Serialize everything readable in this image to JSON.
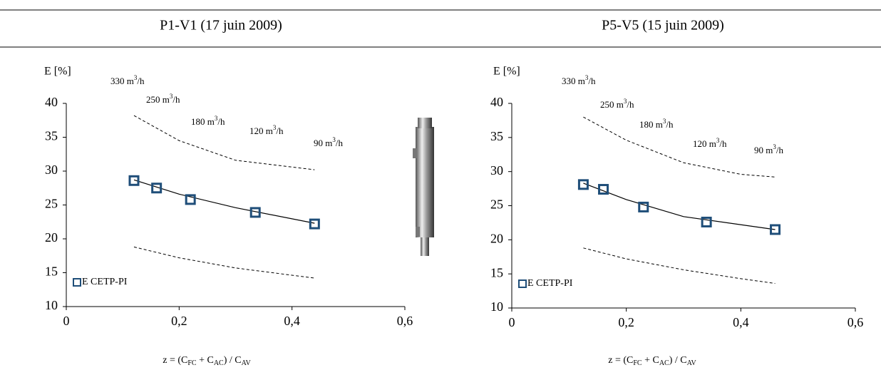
{
  "chart_data": [
    {
      "type": "scatter",
      "title": "P1-V1 (17 juin 2009)",
      "ylabel": "E [%]",
      "xlabel": [
        "z = (C",
        "FC",
        " + C",
        "AC",
        ") / C",
        "AV"
      ],
      "xlim": [
        0,
        0.6
      ],
      "ylim": [
        10,
        40
      ],
      "xticks": [
        0,
        {
          "value": 0.2,
          "label": "0,2"
        },
        {
          "value": 0.4,
          "label": "0,4"
        },
        {
          "value": 0.6,
          "label": "0,6"
        }
      ],
      "yticks": [
        10,
        15,
        20,
        25,
        30,
        35,
        40
      ],
      "legend": "lower left",
      "series": [
        {
          "name": "E CETP-PI",
          "color": "#1f4e79",
          "x": [
            0.12,
            0.16,
            0.22,
            0.335,
            0.44
          ],
          "values": [
            28.6,
            27.5,
            25.8,
            23.9,
            22.2
          ]
        }
      ],
      "lines": [
        {
          "style": "solid",
          "x": [
            0.12,
            0.2,
            0.3,
            0.44
          ],
          "values": [
            28.7,
            26.6,
            24.6,
            22.3
          ]
        },
        {
          "style": "dashed",
          "x": [
            0.12,
            0.2,
            0.3,
            0.44
          ],
          "values": [
            38.2,
            34.5,
            31.6,
            30.2
          ]
        },
        {
          "style": "dashed",
          "x": [
            0.12,
            0.2,
            0.3,
            0.44
          ],
          "values": [
            18.8,
            17.2,
            15.7,
            14.2
          ]
        }
      ],
      "annotations": [
        [
          "330 m",
          "3",
          "/h"
        ],
        [
          "250 m",
          "3",
          "/h"
        ],
        [
          "180 m",
          "3",
          "/h"
        ],
        [
          "120 m",
          "3",
          "/h"
        ],
        [
          "90 m",
          "3",
          "/h"
        ]
      ]
    },
    {
      "type": "scatter",
      "title": "P5-V5 (15 juin 2009)",
      "ylabel": "E [%]",
      "xlabel": [
        "z = (C",
        "FC",
        " + C",
        "AC",
        ") / C",
        "AV"
      ],
      "xlim": [
        0,
        0.6
      ],
      "ylim": [
        10,
        40
      ],
      "xticks": [
        0,
        {
          "value": 0.2,
          "label": "0,2"
        },
        {
          "value": 0.4,
          "label": "0,4"
        },
        {
          "value": 0.6,
          "label": "0,6"
        }
      ],
      "yticks": [
        10,
        15,
        20,
        25,
        30,
        35,
        40
      ],
      "legend": "lower left",
      "series": [
        {
          "name": "E CETP-PI",
          "color": "#1f4e79",
          "x": [
            0.125,
            0.16,
            0.23,
            0.34,
            0.46
          ],
          "values": [
            28.1,
            27.4,
            24.8,
            22.6,
            21.5
          ]
        }
      ],
      "lines": [
        {
          "style": "solid",
          "x": [
            0.125,
            0.2,
            0.3,
            0.46
          ],
          "values": [
            28.3,
            25.9,
            23.4,
            21.5
          ]
        },
        {
          "style": "dashed",
          "x": [
            0.125,
            0.2,
            0.3,
            0.4,
            0.46
          ],
          "values": [
            38,
            34.6,
            31.3,
            29.6,
            29.2
          ]
        },
        {
          "style": "dashed",
          "x": [
            0.125,
            0.2,
            0.3,
            0.4,
            0.46
          ],
          "values": [
            18.8,
            17.2,
            15.6,
            14.3,
            13.6
          ]
        }
      ],
      "annotations": [
        [
          "330 m",
          "3",
          "/h"
        ],
        [
          "250 m",
          "3",
          "/h"
        ],
        [
          "180 m",
          "3",
          "/h"
        ],
        [
          "120 m",
          "3",
          "/h"
        ],
        [
          "90 m",
          "3",
          "/h"
        ]
      ]
    }
  ]
}
